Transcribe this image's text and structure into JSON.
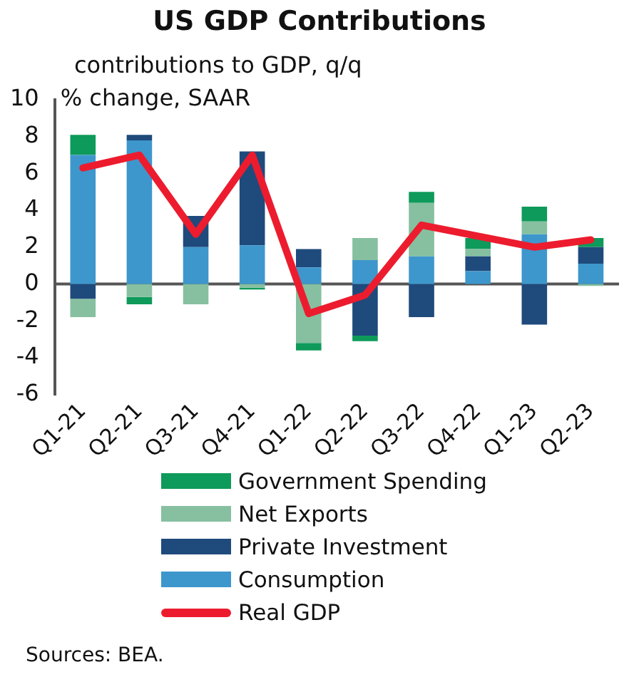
{
  "chart_data": {
    "type": "bar",
    "title": "US GDP Contributions",
    "subtitle": "contributions to GDP, q/q",
    "ylabel": "% change, SAAR",
    "categories": [
      "Q1-21",
      "Q2-21",
      "Q3-21",
      "Q4-21",
      "Q1-22",
      "Q2-22",
      "Q3-22",
      "Q4-22",
      "Q1-23",
      "Q2-23"
    ],
    "stacked": true,
    "series": [
      {
        "name": "Consumption",
        "color": "#3d97cc",
        "values": [
          7.0,
          7.8,
          2.0,
          2.1,
          0.9,
          1.3,
          1.5,
          0.7,
          2.7,
          1.1
        ]
      },
      {
        "name": "Private Investment",
        "color": "#1f4a7c",
        "values": [
          -0.8,
          0.3,
          1.7,
          5.1,
          1.0,
          -2.8,
          -1.8,
          0.8,
          -2.2,
          0.9
        ]
      },
      {
        "name": "Net Exports",
        "color": "#86c0a0",
        "values": [
          -1.0,
          -0.7,
          -1.1,
          -0.2,
          -3.2,
          1.2,
          2.9,
          0.4,
          0.7,
          -0.1
        ]
      },
      {
        "name": "Government Spending",
        "color": "#0e9a5a",
        "values": [
          1.1,
          -0.4,
          0.0,
          -0.1,
          -0.4,
          -0.3,
          0.6,
          0.6,
          0.8,
          0.5
        ]
      },
      {
        "name": "Real GDP",
        "type": "line",
        "color": "#ec1c2e",
        "values": [
          6.3,
          7.0,
          2.7,
          7.0,
          -1.6,
          -0.6,
          3.2,
          2.6,
          2.0,
          2.4
        ]
      }
    ],
    "ylim": [
      -6,
      10
    ],
    "yticks": [
      -6,
      -4,
      -2,
      0,
      2,
      4,
      6,
      8,
      10
    ],
    "legend": "bottom",
    "annotations": [
      "Sources: BEA."
    ]
  }
}
